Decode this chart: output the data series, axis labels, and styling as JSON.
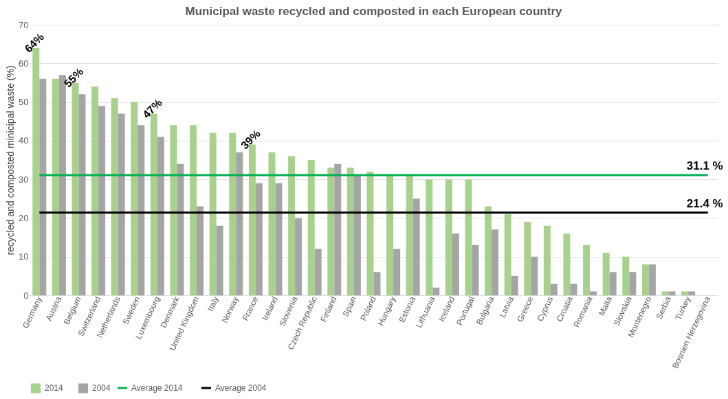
{
  "chart_data": {
    "type": "bar",
    "title": "Municipal waste recycled and composted in each European country",
    "ylabel": "recycled and composted minicipal waste (%)",
    "categories": [
      "Germany",
      "Austria",
      "Belgium",
      "Switzerland",
      "Netherlands",
      "Sweden",
      "Luxembourg",
      "Denmark",
      "United Kingdom",
      "Italy",
      "Norway",
      "France",
      "Ireland",
      "Slovenia",
      "Czech Republic",
      "Finland",
      "Spain",
      "Poland",
      "Hungary",
      "Estonia",
      "Lithuania",
      "Iceland",
      "Portugal",
      "Bulgaria",
      "Latvia",
      "Greece",
      "Cyprus",
      "Croatia",
      "Romania",
      "Malta",
      "Slovakia",
      "Montenegro",
      "Serbia",
      "Turkey",
      "Bosnien Herzegovina"
    ],
    "series": [
      {
        "name": "2014",
        "color": "#a9d18e",
        "values": [
          64,
          56,
          55,
          54,
          51,
          50,
          47,
          44,
          44,
          42,
          42,
          39,
          37,
          36,
          35,
          33,
          33,
          32,
          31,
          31,
          30,
          30,
          30,
          23,
          21,
          19,
          18,
          16,
          13,
          11,
          10,
          8,
          1,
          1,
          null
        ]
      },
      {
        "name": "2004",
        "color": "#a5a5a5",
        "values": [
          56,
          57,
          52,
          49,
          47,
          44,
          41,
          34,
          23,
          18,
          37,
          29,
          29,
          20,
          12,
          34,
          31,
          6,
          12,
          25,
          2,
          16,
          13,
          17,
          5,
          10,
          3,
          3,
          1,
          6,
          6,
          8,
          1,
          1,
          null
        ]
      },
      {
        "name": "Average 2014",
        "type": "line",
        "color": "#00b050",
        "values": [
          31.1,
          31.1,
          31.1,
          31.1,
          31.1,
          31.1,
          31.1,
          31.1,
          31.1,
          31.1,
          31.1,
          31.1,
          31.1,
          31.1,
          31.1,
          31.1,
          31.1,
          31.1,
          31.1,
          31.1,
          31.1,
          31.1,
          31.1,
          31.1,
          31.1,
          31.1,
          31.1,
          31.1,
          31.1,
          31.1,
          31.1,
          31.1,
          31.1,
          31.1,
          31.1
        ]
      },
      {
        "name": "Average 2004",
        "type": "line",
        "color": "#000000",
        "values": [
          21.4,
          21.4,
          21.4,
          21.4,
          21.4,
          21.4,
          21.4,
          21.4,
          21.4,
          21.4,
          21.4,
          21.4,
          21.4,
          21.4,
          21.4,
          21.4,
          21.4,
          21.4,
          21.4,
          21.4,
          21.4,
          21.4,
          21.4,
          21.4,
          21.4,
          21.4,
          21.4,
          21.4,
          21.4,
          21.4,
          21.4,
          21.4,
          21.4,
          21.4,
          21.4
        ]
      }
    ],
    "annotations": [
      {
        "text": "64%",
        "x": "Germany",
        "y": 64
      },
      {
        "text": "55%",
        "x": "Belgium",
        "y": 55
      },
      {
        "text": "47%",
        "x": "Luxembourg",
        "y": 47
      },
      {
        "text": "39%",
        "x": "France",
        "y": 39
      },
      {
        "text": "31.1 %",
        "x": "Bosnien Herzegovina",
        "y": 31.1
      },
      {
        "text": "21.4 %",
        "x": "Bosnien Herzegovina",
        "y": 21.4
      }
    ],
    "ylim": [
      0,
      70
    ],
    "yticks": [
      0,
      10,
      20,
      30,
      40,
      50,
      60,
      70
    ],
    "grid": "y",
    "legend": "bottom"
  }
}
